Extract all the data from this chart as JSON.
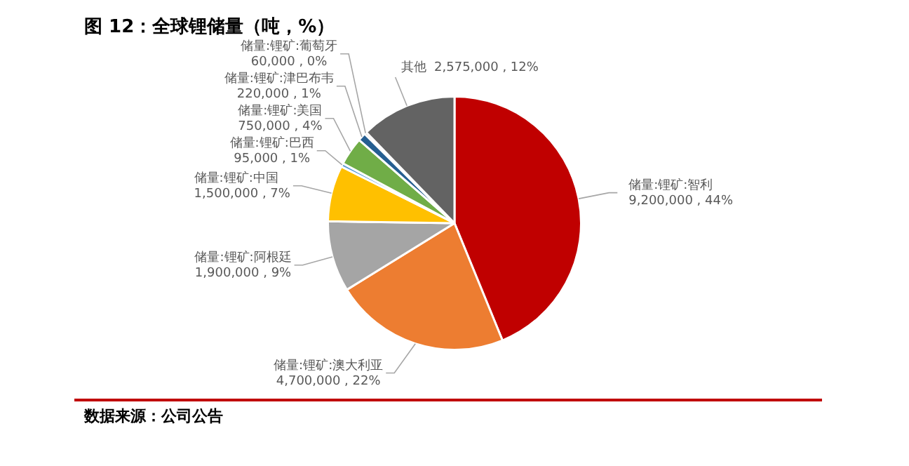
{
  "chart_data": {
    "type": "pie",
    "title": "图 12：全球锂储量（吨，%）",
    "categories": [
      "储量:锂矿:智利",
      "储量:锂矿:澳大利亚",
      "储量:锂矿:阿根廷",
      "储量:锂矿:中国",
      "储量:锂矿:巴西",
      "储量:锂矿:美国",
      "储量:锂矿:津巴布韦",
      "储量:锂矿:葡萄牙",
      "其他"
    ],
    "legend": false,
    "values": [
      9200000,
      4700000,
      1900000,
      1500000,
      95000,
      750000,
      220000,
      60000,
      2575000
    ],
    "value_labels": [
      "9,200,000 , 44%",
      "4,700,000 , 22%",
      "1,900,000 , 9%",
      "1,500,000 , 7%",
      "95,000 , 1%",
      "750,000 , 4%",
      "220,000 , 1%",
      "60,000 , 0%",
      "2,575,000 , 12%"
    ],
    "colors": [
      "#c00000",
      "#ed7d31",
      "#a5a5a5",
      "#ffc000",
      "#5b9bd5",
      "#70ad47",
      "#255e91",
      "#9e480e",
      "#636363"
    ],
    "annotations": [
      "数据来源：公司公告"
    ]
  }
}
